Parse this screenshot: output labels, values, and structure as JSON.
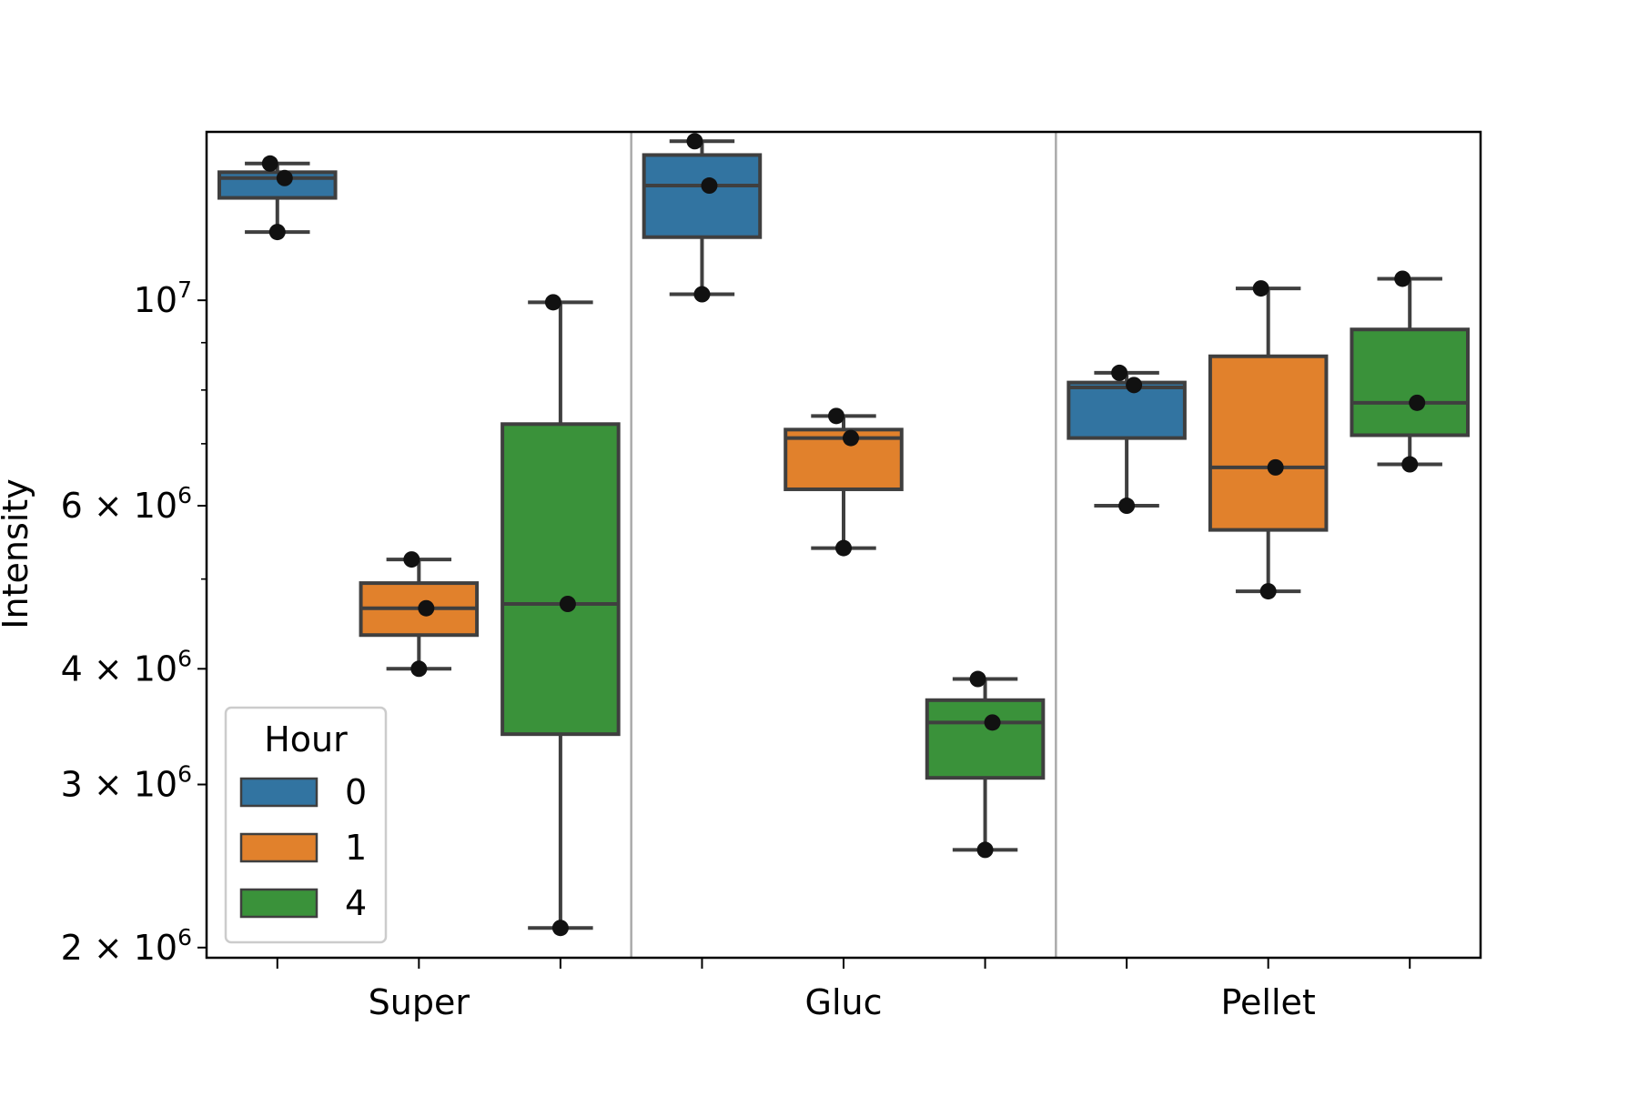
{
  "chart_data": {
    "type": "box",
    "xlabel": "",
    "ylabel": "Intensity",
    "yscale": "log",
    "ylim": [
      1950000,
      15200000
    ],
    "grid": false,
    "categories": [
      "Super",
      "Gluc",
      "Pellet"
    ],
    "y_ticks": [
      {
        "value": 10000000,
        "base": "10",
        "sup": "7"
      },
      {
        "value": 6000000,
        "base": "6 × 10",
        "sup": "6"
      },
      {
        "value": 4000000,
        "base": "4 × 10",
        "sup": "6"
      },
      {
        "value": 3000000,
        "base": "3 × 10",
        "sup": "6"
      },
      {
        "value": 2000000,
        "base": "2 × 10",
        "sup": "6"
      }
    ],
    "y_minor_ticks": [
      9000000,
      8000000,
      7000000,
      5000000
    ],
    "legend": {
      "title": "Hour",
      "position": "lower-left"
    },
    "series": [
      {
        "name": "0",
        "color": "#3274a1",
        "boxes": [
          {
            "category": "Super",
            "whislo": 11850000,
            "q1": 12900000,
            "median": 13550000,
            "q3": 13750000,
            "whishi": 14050000
          },
          {
            "category": "Gluc",
            "whislo": 10150000,
            "q1": 11700000,
            "median": 13300000,
            "q3": 14350000,
            "whishi": 14850000
          },
          {
            "category": "Pellet",
            "whislo": 6000000,
            "q1": 7100000,
            "median": 8050000,
            "q3": 8150000,
            "whishi": 8350000
          }
        ],
        "points": [
          {
            "category": "Super",
            "values": [
              14050000,
              13550000,
              11850000
            ]
          },
          {
            "category": "Gluc",
            "values": [
              14850000,
              13300000,
              10150000
            ]
          },
          {
            "category": "Pellet",
            "values": [
              8350000,
              8100000,
              6000000
            ]
          }
        ]
      },
      {
        "name": "1",
        "color": "#e1812c",
        "boxes": [
          {
            "category": "Super",
            "whislo": 4000000,
            "q1": 4350000,
            "median": 4650000,
            "q3": 4950000,
            "whishi": 5250000
          },
          {
            "category": "Gluc",
            "whislo": 5400000,
            "q1": 6250000,
            "median": 7100000,
            "q3": 7250000,
            "whishi": 7500000
          },
          {
            "category": "Pellet",
            "whislo": 4850000,
            "q1": 5650000,
            "median": 6600000,
            "q3": 8700000,
            "whishi": 10300000
          }
        ],
        "points": [
          {
            "category": "Super",
            "values": [
              5250000,
              4650000,
              4000000
            ]
          },
          {
            "category": "Gluc",
            "values": [
              7500000,
              7100000,
              5400000
            ]
          },
          {
            "category": "Pellet",
            "values": [
              10300000,
              6600000,
              4850000
            ]
          }
        ]
      },
      {
        "name": "4",
        "color": "#3a923a",
        "boxes": [
          {
            "category": "Super",
            "whislo": 2100000,
            "q1": 3400000,
            "median": 4700000,
            "q3": 7350000,
            "whishi": 9950000
          },
          {
            "category": "Gluc",
            "whislo": 2550000,
            "q1": 3050000,
            "median": 3500000,
            "q3": 3700000,
            "whishi": 3900000
          },
          {
            "category": "Pellet",
            "whislo": 6650000,
            "q1": 7150000,
            "median": 7750000,
            "q3": 9300000,
            "whishi": 10550000
          }
        ],
        "points": [
          {
            "category": "Super",
            "values": [
              9950000,
              4700000,
              2100000
            ]
          },
          {
            "category": "Gluc",
            "values": [
              3900000,
              3500000,
              2550000
            ]
          },
          {
            "category": "Pellet",
            "values": [
              10550000,
              7750000,
              6650000
            ]
          }
        ]
      }
    ]
  }
}
